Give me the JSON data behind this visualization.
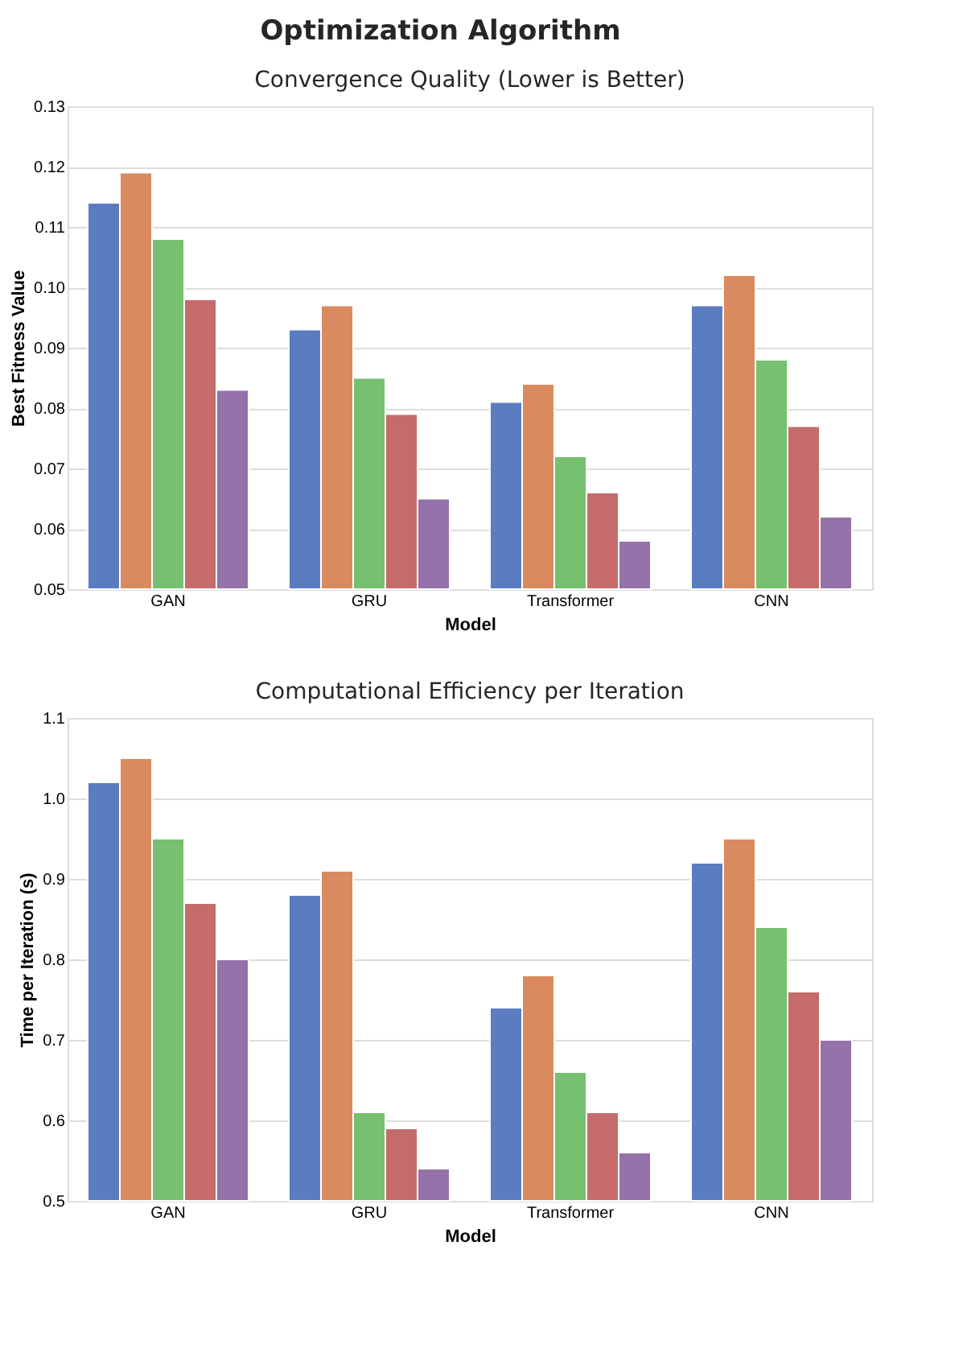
{
  "chart_data": [
    {
      "type": "bar",
      "title": "Optimization Algorithm",
      "subtitle": "Convergence Quality (Lower is Better)",
      "xlabel": "Model",
      "ylabel": "Best Fitness Value",
      "categories": [
        "GAN",
        "GRU",
        "Transformer",
        "CNN"
      ],
      "series": [
        {
          "color": "#5b7dc0",
          "values": [
            0.114,
            0.093,
            0.081,
            0.097
          ]
        },
        {
          "color": "#d98a5e",
          "values": [
            0.119,
            0.097,
            0.084,
            0.102
          ]
        },
        {
          "color": "#76c06f",
          "values": [
            0.108,
            0.085,
            0.072,
            0.088
          ]
        },
        {
          "color": "#c66b6b",
          "values": [
            0.098,
            0.079,
            0.066,
            0.077
          ]
        },
        {
          "color": "#9573aa",
          "values": [
            0.083,
            0.065,
            0.058,
            0.062
          ]
        }
      ],
      "ylim": [
        0.05,
        0.13
      ],
      "yticks": [
        0.05,
        0.06,
        0.07,
        0.08,
        0.09,
        {
          "value": 0.1,
          "label": "0.10"
        },
        0.11,
        0.12,
        0.13
      ],
      "grid": "y"
    },
    {
      "type": "bar",
      "title": "Computational Efficiency per Iteration",
      "xlabel": "Model",
      "ylabel": "Time per Iteration (s)",
      "categories": [
        "GAN",
        "GRU",
        "Transformer",
        "CNN"
      ],
      "series": [
        {
          "color": "#5b7dc0",
          "values": [
            1.02,
            0.88,
            0.74,
            0.92
          ]
        },
        {
          "color": "#d98a5e",
          "values": [
            1.05,
            0.91,
            0.78,
            0.95
          ]
        },
        {
          "color": "#76c06f",
          "values": [
            0.95,
            0.61,
            0.66,
            0.84
          ]
        },
        {
          "color": "#c66b6b",
          "values": [
            0.87,
            0.59,
            0.61,
            0.76
          ]
        },
        {
          "color": "#9573aa",
          "values": [
            0.8,
            0.54,
            0.56,
            0.7
          ]
        }
      ],
      "ylim": [
        0.5,
        1.1
      ],
      "yticks": [
        0.5,
        0.6,
        0.7,
        0.8,
        0.9,
        {
          "value": 1.0,
          "label": "1.0"
        },
        1.1
      ],
      "grid": "y"
    }
  ]
}
